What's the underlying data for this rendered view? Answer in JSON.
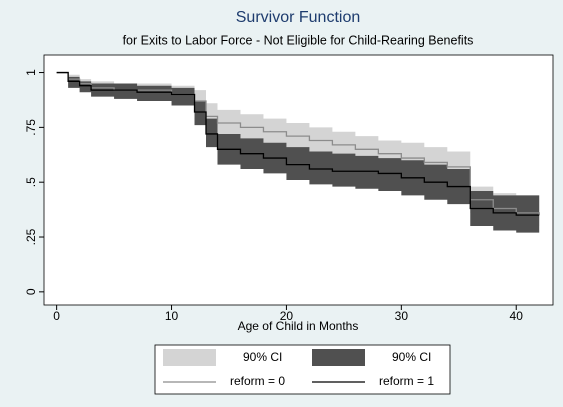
{
  "chart_data": {
    "type": "step",
    "title": "Survivor Function",
    "subtitle": "for Exits to Labor Force - Not Eligible for Child-Rearing Benefits",
    "x_label": "Age of Child in Months",
    "x": [
      0,
      1,
      2,
      3,
      5,
      7,
      10,
      12,
      13,
      14,
      16,
      18,
      20,
      22,
      24,
      26,
      28,
      30,
      32,
      34,
      36,
      38,
      40,
      42
    ],
    "xlim": [
      -1.1,
      43.2
    ],
    "xticks": [
      0,
      10,
      20,
      30,
      40
    ],
    "ylim": [
      -0.06,
      1.08
    ],
    "yticks": [
      0,
      {
        "value": 0.25,
        "label": ".25"
      },
      {
        "value": 0.5,
        "label": ".5"
      },
      {
        "value": 0.75,
        "label": ".75"
      },
      1
    ],
    "bands": [
      {
        "name": "90% CI",
        "color": "#d4d4d4",
        "upper": [
          1,
          0.99,
          0.97,
          0.96,
          0.95,
          0.95,
          0.94,
          0.92,
          0.86,
          0.83,
          0.81,
          0.79,
          0.77,
          0.75,
          0.73,
          0.71,
          0.69,
          0.68,
          0.66,
          0.64,
          0.48,
          0.45,
          0.44,
          0.44
        ],
        "lower": [
          1,
          0.94,
          0.92,
          0.89,
          0.88,
          0.88,
          0.86,
          0.82,
          0.74,
          0.71,
          0.69,
          0.67,
          0.65,
          0.63,
          0.61,
          0.59,
          0.57,
          0.55,
          0.53,
          0.5,
          0.36,
          0.32,
          0.3,
          0.24
        ]
      },
      {
        "name": "90% CI",
        "color": "#505050",
        "upper": [
          1,
          0.98,
          0.96,
          0.95,
          0.95,
          0.94,
          0.93,
          0.87,
          0.79,
          0.72,
          0.7,
          0.68,
          0.66,
          0.64,
          0.63,
          0.62,
          0.61,
          0.6,
          0.58,
          0.56,
          0.46,
          0.44,
          0.44,
          0.44
        ],
        "lower": [
          1,
          0.93,
          0.91,
          0.89,
          0.88,
          0.87,
          0.85,
          0.76,
          0.66,
          0.58,
          0.56,
          0.54,
          0.51,
          0.49,
          0.48,
          0.47,
          0.46,
          0.44,
          0.42,
          0.4,
          0.3,
          0.28,
          0.27,
          0.27
        ]
      }
    ],
    "series": [
      {
        "name": "reform = 0",
        "color": "#8c8c8c",
        "values": [
          1,
          0.97,
          0.95,
          0.93,
          0.92,
          0.92,
          0.9,
          0.87,
          0.8,
          0.77,
          0.75,
          0.73,
          0.71,
          0.69,
          0.67,
          0.65,
          0.63,
          0.61,
          0.59,
          0.57,
          0.42,
          0.38,
          0.36,
          0.35
        ]
      },
      {
        "name": "reform = 1",
        "color": "#000000",
        "values": [
          1,
          0.96,
          0.94,
          0.92,
          0.92,
          0.91,
          0.9,
          0.82,
          0.72,
          0.65,
          0.63,
          0.61,
          0.58,
          0.56,
          0.55,
          0.55,
          0.54,
          0.52,
          0.5,
          0.48,
          0.38,
          0.36,
          0.35,
          0.35
        ]
      }
    ]
  }
}
